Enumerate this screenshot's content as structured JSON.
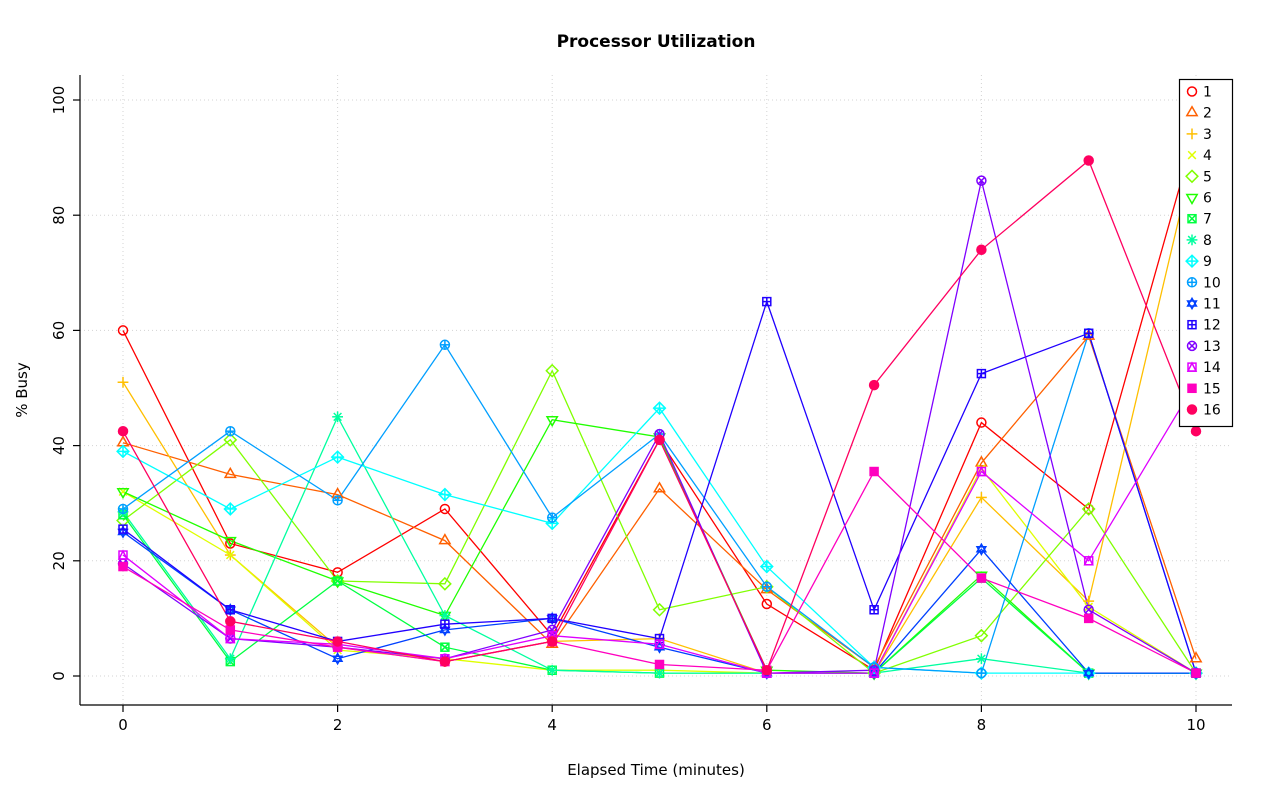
{
  "chart_data": {
    "type": "line",
    "title": "Processor Utilization",
    "xlabel": "Elapsed Time (minutes)",
    "ylabel": "% Busy",
    "xlim": [
      0,
      10
    ],
    "ylim": [
      0,
      100
    ],
    "x_ticks": [
      0,
      2,
      4,
      6,
      8,
      10
    ],
    "x_tick_labels": [
      "0",
      "2",
      "4",
      "6",
      "8",
      "10"
    ],
    "y_ticks": [
      0,
      20,
      40,
      60,
      80,
      100
    ],
    "y_tick_labels": [
      "0",
      "20",
      "40",
      "60",
      "80",
      "100"
    ],
    "grid": true,
    "grid_color": "#d3d3d3",
    "axis_color": "#000000",
    "legend_position": "top-right",
    "x": [
      0,
      1,
      2,
      3,
      4,
      5,
      6,
      7,
      8,
      9,
      10
    ],
    "series": [
      {
        "name": "1",
        "pch": 1,
        "color": "#FF0000",
        "values": [
          60,
          23,
          18,
          29,
          7,
          41,
          12.5,
          1,
          44,
          29,
          95
        ]
      },
      {
        "name": "2",
        "pch": 2,
        "color": "#FF6000",
        "values": [
          40.5,
          35,
          31.5,
          23.5,
          5.5,
          32.5,
          15,
          1.5,
          37,
          59,
          3
        ]
      },
      {
        "name": "3",
        "pch": 3,
        "color": "#FFBF00",
        "values": [
          51,
          21,
          5,
          2.5,
          6,
          6.5,
          0.5,
          0.5,
          31,
          13,
          92
        ]
      },
      {
        "name": "4",
        "pch": 4,
        "color": "#DFFF00",
        "values": [
          32,
          21,
          4.5,
          3,
          1,
          1,
          0.5,
          0.5,
          36,
          12,
          0.5
        ]
      },
      {
        "name": "5",
        "pch": 5,
        "color": "#80FF00",
        "values": [
          27,
          41,
          16.5,
          16,
          53,
          11.5,
          15.5,
          0.5,
          7,
          29,
          0.5
        ]
      },
      {
        "name": "6",
        "pch": 6,
        "color": "#20FF00",
        "values": [
          32,
          23.5,
          16.5,
          10.5,
          44.5,
          41.5,
          1,
          0.5,
          17.5,
          0.5,
          0.5
        ]
      },
      {
        "name": "7",
        "pch": 7,
        "color": "#00FF40",
        "values": [
          28,
          2.5,
          16.5,
          5,
          1,
          0.5,
          0.5,
          0.5,
          17,
          0.5,
          0.5
        ]
      },
      {
        "name": "8",
        "pch": 8,
        "color": "#00FF9F",
        "values": [
          28.5,
          3,
          45,
          10.5,
          1,
          0.5,
          0.5,
          0.5,
          3,
          0.5,
          0.5
        ]
      },
      {
        "name": "9",
        "pch": 9,
        "color": "#00FFFF",
        "values": [
          39,
          29,
          38,
          31.5,
          26.5,
          46.5,
          19,
          1.5,
          0.5,
          0.5,
          0.5
        ]
      },
      {
        "name": "10",
        "pch": 10,
        "color": "#009FFF",
        "values": [
          29,
          42.5,
          30.5,
          57.5,
          27.5,
          42,
          15.5,
          1.5,
          0.5,
          59.5,
          0.5
        ]
      },
      {
        "name": "11",
        "pch": 11,
        "color": "#0040FF",
        "values": [
          25,
          11.5,
          3,
          8,
          10,
          5,
          0.5,
          0.5,
          22,
          0.5,
          0.5
        ]
      },
      {
        "name": "12",
        "pch": 12,
        "color": "#2000FF",
        "values": [
          25.5,
          11.5,
          6,
          9,
          10,
          6.5,
          65,
          11.5,
          52.5,
          59.5,
          0.5
        ]
      },
      {
        "name": "13",
        "pch": 13,
        "color": "#8000FF",
        "values": [
          19.5,
          6.5,
          5,
          3,
          8,
          42,
          0.5,
          1,
          86,
          11.5,
          0.5
        ]
      },
      {
        "name": "14",
        "pch": 14,
        "color": "#DF00FF",
        "values": [
          21,
          6.5,
          5.5,
          3,
          7,
          5.5,
          0.5,
          0.5,
          35.5,
          20,
          51
        ]
      },
      {
        "name": "15",
        "pch": 15,
        "color": "#FF00BF",
        "values": [
          19,
          8,
          5,
          2.5,
          6,
          2,
          1,
          35.5,
          17,
          10,
          0.5
        ]
      },
      {
        "name": "16",
        "pch": 16,
        "color": "#FF0060",
        "values": [
          42.5,
          9.5,
          6,
          2.5,
          6,
          41,
          1,
          50.5,
          74,
          89.5,
          42.5
        ]
      }
    ],
    "legend_labels": [
      "1",
      "2",
      "3",
      "4",
      "5",
      "6",
      "7",
      "8",
      "9",
      "10",
      "11",
      "12",
      "13",
      "14",
      "15",
      "16"
    ]
  }
}
